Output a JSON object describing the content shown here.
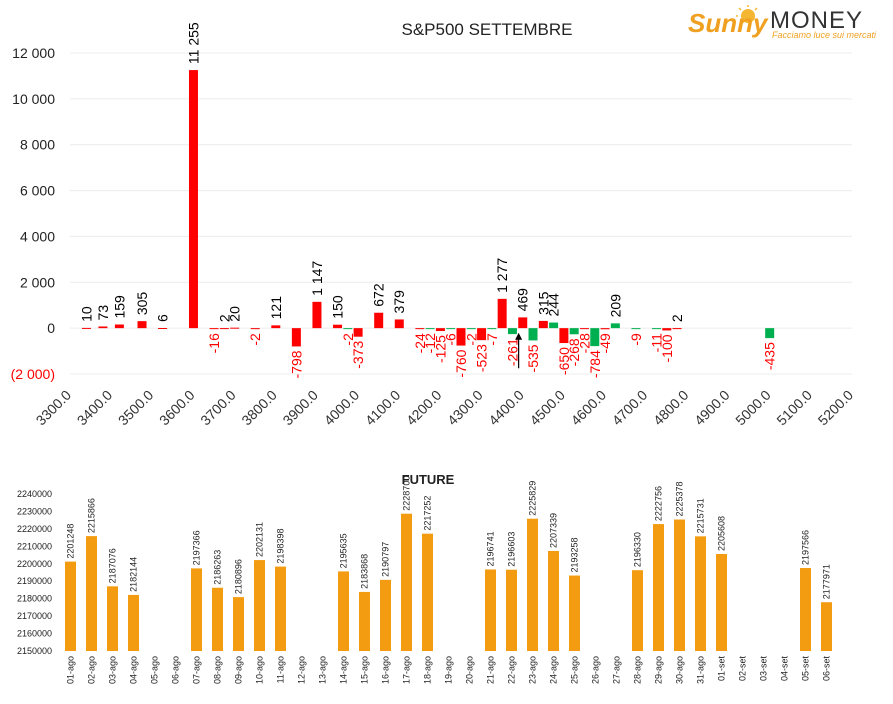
{
  "logo": {
    "word1": "Sunny",
    "word2": "MONEY",
    "tagline": "Facciamo luce sui mercati",
    "colors": {
      "sunny": "#f0a020",
      "money": "#333333",
      "tagline": "#f0a020"
    }
  },
  "chart_data": [
    {
      "type": "bar",
      "title": "S&P500 SETTEMBRE",
      "xlabel": "",
      "ylabel": "",
      "ylim": [
        -2000,
        12000
      ],
      "yticks": [
        12000,
        10000,
        8000,
        6000,
        4000,
        2000,
        0,
        -2000
      ],
      "ytick_labels": [
        "12 000",
        "10 000",
        "8 000",
        "6 000",
        "4 000",
        "2 000",
        "0",
        "(2 000)"
      ],
      "xlim": [
        3300,
        5200
      ],
      "xticks": [
        3300,
        3400,
        3500,
        3600,
        3700,
        3800,
        3900,
        4000,
        4100,
        4200,
        4300,
        4400,
        4500,
        4600,
        4700,
        4800,
        4900,
        5000,
        5100,
        5200
      ],
      "xtick_labels": [
        "3300.0",
        "3400.0",
        "3500.0",
        "3600.0",
        "3700.0",
        "3800.0",
        "3900.0",
        "4000.0",
        "4100.0",
        "4200.0",
        "4300.0",
        "4400.0",
        "4500.0",
        "4600.0",
        "4700.0",
        "4800.0",
        "4900.0",
        "5000.0",
        "5100.0",
        "5200.0"
      ],
      "grid": true,
      "colors": {
        "red": "#ff0000",
        "green": "#00b050",
        "negative_label": "#ff0000",
        "positive_label": "#000000"
      },
      "bars": [
        {
          "x": 3340,
          "value": 10,
          "label": "10",
          "color": "red"
        },
        {
          "x": 3380,
          "value": 73,
          "label": "73",
          "color": "red"
        },
        {
          "x": 3420,
          "value": 159,
          "label": "159",
          "color": "red"
        },
        {
          "x": 3475,
          "value": 305,
          "label": "305",
          "color": "red"
        },
        {
          "x": 3525,
          "value": 6,
          "label": "6",
          "color": "red"
        },
        {
          "x": 3600,
          "value": 11255,
          "label": "11 255",
          "color": "red"
        },
        {
          "x": 3650,
          "value": -16,
          "label": "-16",
          "color": "red"
        },
        {
          "x": 3675,
          "value": 2,
          "label": "2",
          "color": "red"
        },
        {
          "x": 3700,
          "value": 20,
          "label": "20",
          "color": "red"
        },
        {
          "x": 3750,
          "value": -2,
          "label": "-2",
          "color": "red"
        },
        {
          "x": 3800,
          "value": 121,
          "label": "121",
          "color": "red"
        },
        {
          "x": 3850,
          "value": -798,
          "label": "-798",
          "color": "red"
        },
        {
          "x": 3900,
          "value": 1147,
          "label": "1 147",
          "color": "red"
        },
        {
          "x": 3950,
          "value": 150,
          "label": "150",
          "color": "red"
        },
        {
          "x": 3975,
          "value": -2,
          "label": "-2",
          "color": "green"
        },
        {
          "x": 4000,
          "value": -373,
          "label": "-373",
          "color": "red"
        },
        {
          "x": 4050,
          "value": 672,
          "label": "672",
          "color": "red"
        },
        {
          "x": 4100,
          "value": 379,
          "label": "379",
          "color": "red"
        },
        {
          "x": 4150,
          "value": -24,
          "label": "-24",
          "color": "red"
        },
        {
          "x": 4175,
          "value": -12,
          "label": "-12",
          "color": "green"
        },
        {
          "x": 4200,
          "value": -125,
          "label": "-125",
          "color": "red"
        },
        {
          "x": 4225,
          "value": -6,
          "label": "-6",
          "color": "green"
        },
        {
          "x": 4250,
          "value": -760,
          "label": "-760",
          "color": "red"
        },
        {
          "x": 4275,
          "value": -2,
          "label": "-2",
          "color": "green"
        },
        {
          "x": 4300,
          "value": -523,
          "label": "-523",
          "color": "red"
        },
        {
          "x": 4325,
          "value": -7,
          "label": "-7",
          "color": "green"
        },
        {
          "x": 4350,
          "value": 1277,
          "label": "1 277",
          "color": "red"
        },
        {
          "x": 4375,
          "value": -261,
          "label": "-261",
          "color": "green"
        },
        {
          "x": 4400,
          "value": 469,
          "label": "469",
          "color": "red"
        },
        {
          "x": 4425,
          "value": -535,
          "label": "-535",
          "color": "green"
        },
        {
          "x": 4450,
          "value": 315,
          "label": "315",
          "color": "red"
        },
        {
          "x": 4475,
          "value": 244,
          "label": "244",
          "color": "green"
        },
        {
          "x": 4500,
          "value": -650,
          "label": "-650",
          "color": "red"
        },
        {
          "x": 4525,
          "value": -268,
          "label": "-268",
          "color": "green"
        },
        {
          "x": 4550,
          "value": -28,
          "label": "-28",
          "color": "red"
        },
        {
          "x": 4575,
          "value": -784,
          "label": "-784",
          "color": "green"
        },
        {
          "x": 4600,
          "value": -49,
          "label": "-49",
          "color": "red"
        },
        {
          "x": 4625,
          "value": 209,
          "label": "209",
          "color": "green"
        },
        {
          "x": 4675,
          "value": -9,
          "label": "-9",
          "color": "green"
        },
        {
          "x": 4725,
          "value": -11,
          "label": "-11",
          "color": "green"
        },
        {
          "x": 4750,
          "value": -100,
          "label": "-100",
          "color": "red"
        },
        {
          "x": 4775,
          "value": 2,
          "label": "2",
          "color": "red"
        },
        {
          "x": 5000,
          "value": -435,
          "label": "-435",
          "color": "green"
        }
      ],
      "marker": {
        "x": 4390,
        "type": "arrow-up",
        "from": -1750,
        "to": -200
      }
    },
    {
      "type": "bar",
      "title": "FUTURE",
      "xlabel": "",
      "ylabel": "",
      "ylim": [
        2150000,
        2240000
      ],
      "yticks": [
        2150000,
        2160000,
        2170000,
        2180000,
        2190000,
        2200000,
        2210000,
        2220000,
        2230000,
        2240000
      ],
      "ytick_labels": [
        "2150000",
        "2160000",
        "2170000",
        "2180000",
        "2190000",
        "2200000",
        "2210000",
        "2220000",
        "2230000",
        "2240000"
      ],
      "grid": false,
      "colors": {
        "bar": "#f39c12"
      },
      "categories": [
        "01-ago",
        "02-ago",
        "03-ago",
        "04-ago",
        "05-ago",
        "06-ago",
        "07-ago",
        "08-ago",
        "09-ago",
        "10-ago",
        "11-ago",
        "12-ago",
        "13-ago",
        "14-ago",
        "15-ago",
        "16-ago",
        "17-ago",
        "18-ago",
        "19-ago",
        "20-ago",
        "21-ago",
        "22-ago",
        "23-ago",
        "24-ago",
        "25-ago",
        "26-ago",
        "27-ago",
        "28-ago",
        "29-ago",
        "30-ago",
        "31-ago",
        "01-set",
        "02-set",
        "03-set",
        "04-set",
        "05-set",
        "06-set"
      ],
      "values": [
        2201248,
        2215866,
        2187076,
        2182144,
        null,
        null,
        2197366,
        2186263,
        2180896,
        2202131,
        2198398,
        null,
        null,
        2195635,
        2183868,
        2190797,
        2228700,
        2217252,
        null,
        null,
        2196741,
        2196603,
        2225829,
        2207339,
        2193258,
        null,
        null,
        2196330,
        2222756,
        2225378,
        2215731,
        2205608,
        null,
        null,
        null,
        2197566,
        2177971
      ],
      "value_labels": [
        "2201248",
        "2215866",
        "2187076",
        "2182144",
        "",
        "",
        "2197366",
        "2186263",
        "2180896",
        "2202131",
        "2198398",
        "",
        "",
        "2195635",
        "2183868",
        "2190797",
        "2228700",
        "2217252",
        "",
        "",
        "2196741",
        "2196603",
        "2225829",
        "2207339",
        "2193258",
        "",
        "",
        "2196330",
        "2222756",
        "2225378",
        "2215731",
        "2205608",
        "",
        "",
        "",
        "2197566",
        "2177971"
      ]
    }
  ]
}
